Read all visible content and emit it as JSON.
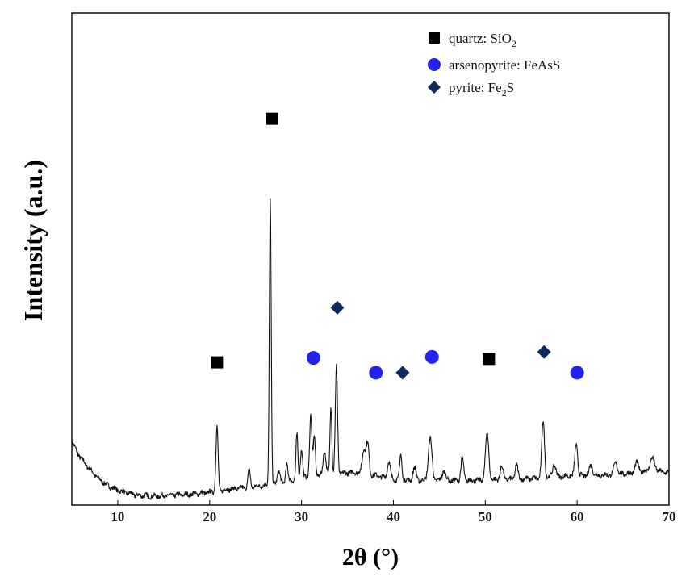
{
  "chart_data": {
    "type": "line",
    "xlabel": "2θ (°)",
    "ylabel": "Intensity (a.u.)",
    "xlim": [
      5,
      70
    ],
    "ylim": [
      0,
      100
    ],
    "x_ticks": [
      10,
      20,
      30,
      40,
      50,
      60,
      70
    ],
    "y_ticks_shown": false,
    "grid": false,
    "legend_position": "top-right",
    "legend": [
      {
        "marker": "square",
        "color": "#000000",
        "label": "quartz: SiO",
        "sub": "2"
      },
      {
        "marker": "circle",
        "color": "#2323ee",
        "label": "arsenopyrite: FeAsS",
        "sub": ""
      },
      {
        "marker": "diamond",
        "color": "#0d2a5e",
        "label": "pyrite: Fe",
        "sub": "2",
        "label_tail": "S"
      }
    ],
    "series": [
      {
        "baseline": [
          [
            5,
            13.0
          ],
          [
            5.5,
            11.0
          ],
          [
            6,
            9.5
          ],
          [
            7,
            7.2
          ],
          [
            8,
            5.2
          ],
          [
            9,
            3.9
          ],
          [
            10,
            3.0
          ],
          [
            12,
            2.0
          ],
          [
            14,
            1.8
          ],
          [
            16,
            2.0
          ],
          [
            18,
            2.2
          ],
          [
            20,
            2.6
          ],
          [
            22,
            3.2
          ],
          [
            24,
            3.6
          ],
          [
            26,
            4.0
          ],
          [
            28,
            4.6
          ],
          [
            30,
            5.5
          ],
          [
            32,
            6.0
          ],
          [
            34,
            6.4
          ],
          [
            36,
            6.7
          ],
          [
            38,
            6.0
          ],
          [
            40,
            5.3
          ],
          [
            42,
            5.0
          ],
          [
            44,
            5.0
          ],
          [
            46,
            5.0
          ],
          [
            48,
            5.0
          ],
          [
            50,
            5.1
          ],
          [
            52,
            5.2
          ],
          [
            54,
            5.3
          ],
          [
            56,
            5.5
          ],
          [
            58,
            5.8
          ],
          [
            60,
            6.0
          ],
          [
            62,
            6.0
          ],
          [
            64,
            6.2
          ],
          [
            66,
            6.5
          ],
          [
            68,
            7.0
          ],
          [
            70,
            6.6
          ]
        ],
        "peaks": [
          [
            20.8,
            13.0,
            0.12
          ],
          [
            24.3,
            3.5,
            0.12
          ],
          [
            26.6,
            58.0,
            0.1
          ],
          [
            27.5,
            2.5,
            0.15
          ],
          [
            28.4,
            3.5,
            0.12
          ],
          [
            29.5,
            9.0,
            0.1
          ],
          [
            30.0,
            6.0,
            0.12
          ],
          [
            31.0,
            12.5,
            0.12
          ],
          [
            31.4,
            8.0,
            0.12
          ],
          [
            32.5,
            5.0,
            0.15
          ],
          [
            33.2,
            14.0,
            0.1
          ],
          [
            33.8,
            22.0,
            0.12
          ],
          [
            36.8,
            5.0,
            0.18
          ],
          [
            37.2,
            6.0,
            0.15
          ],
          [
            39.5,
            3.5,
            0.15
          ],
          [
            40.8,
            5.0,
            0.12
          ],
          [
            42.3,
            2.5,
            0.18
          ],
          [
            44.0,
            8.5,
            0.2
          ],
          [
            45.5,
            2.0,
            0.18
          ],
          [
            47.5,
            4.5,
            0.15
          ],
          [
            50.2,
            9.5,
            0.18
          ],
          [
            51.8,
            2.5,
            0.18
          ],
          [
            53.4,
            3.0,
            0.15
          ],
          [
            56.3,
            11.5,
            0.15
          ],
          [
            57.5,
            2.5,
            0.18
          ],
          [
            59.9,
            6.5,
            0.15
          ],
          [
            61.5,
            2.0,
            0.2
          ],
          [
            64.2,
            2.5,
            0.18
          ],
          [
            66.5,
            2.0,
            0.2
          ],
          [
            68.2,
            2.5,
            0.25
          ]
        ]
      }
    ],
    "markers": [
      {
        "phase": "quartz",
        "shape": "square",
        "color": "#000000",
        "x": 20.8,
        "y": 29.0
      },
      {
        "phase": "quartz",
        "shape": "square",
        "color": "#000000",
        "x": 26.8,
        "y": 78.5
      },
      {
        "phase": "quartz",
        "shape": "square",
        "color": "#000000",
        "x": 50.4,
        "y": 29.7
      },
      {
        "phase": "arsenopyrite",
        "shape": "circle",
        "color": "#2323ee",
        "x": 31.3,
        "y": 29.9
      },
      {
        "phase": "arsenopyrite",
        "shape": "circle",
        "color": "#2323ee",
        "x": 38.1,
        "y": 26.9
      },
      {
        "phase": "arsenopyrite",
        "shape": "circle",
        "color": "#2323ee",
        "x": 44.2,
        "y": 30.1
      },
      {
        "phase": "arsenopyrite",
        "shape": "circle",
        "color": "#2323ee",
        "x": 60.0,
        "y": 26.9
      },
      {
        "phase": "pyrite",
        "shape": "diamond",
        "color": "#0d2a5e",
        "x": 33.9,
        "y": 40.1
      },
      {
        "phase": "pyrite",
        "shape": "diamond",
        "color": "#0d2a5e",
        "x": 41.0,
        "y": 26.9
      },
      {
        "phase": "pyrite",
        "shape": "diamond",
        "color": "#0d2a5e",
        "x": 56.4,
        "y": 31.1
      }
    ]
  }
}
